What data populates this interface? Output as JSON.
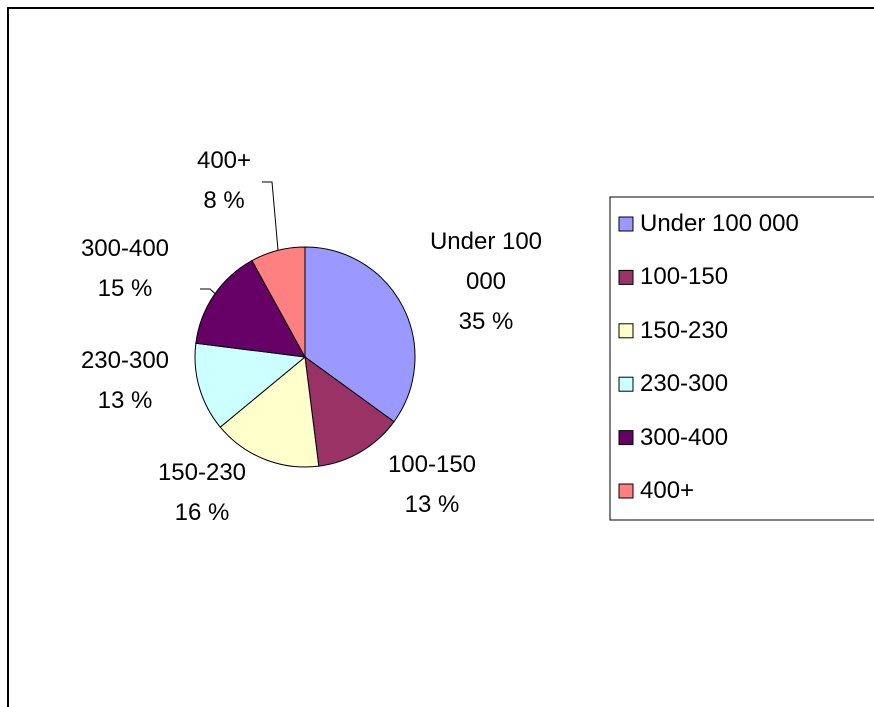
{
  "chart_data": {
    "type": "pie",
    "categories": [
      "Under 100 000",
      "100-150",
      "150-230",
      "230-300",
      "300-400",
      "400+"
    ],
    "values": [
      35,
      13,
      16,
      13,
      15,
      8
    ],
    "value_labels": [
      "35 %",
      "13 %",
      "16 %",
      "13 %",
      "15 %",
      "8 %"
    ],
    "colors": [
      "#9999ff",
      "#993366",
      "#ffffcc",
      "#ccffff",
      "#660066",
      "#ff8080"
    ],
    "legend": "right"
  }
}
